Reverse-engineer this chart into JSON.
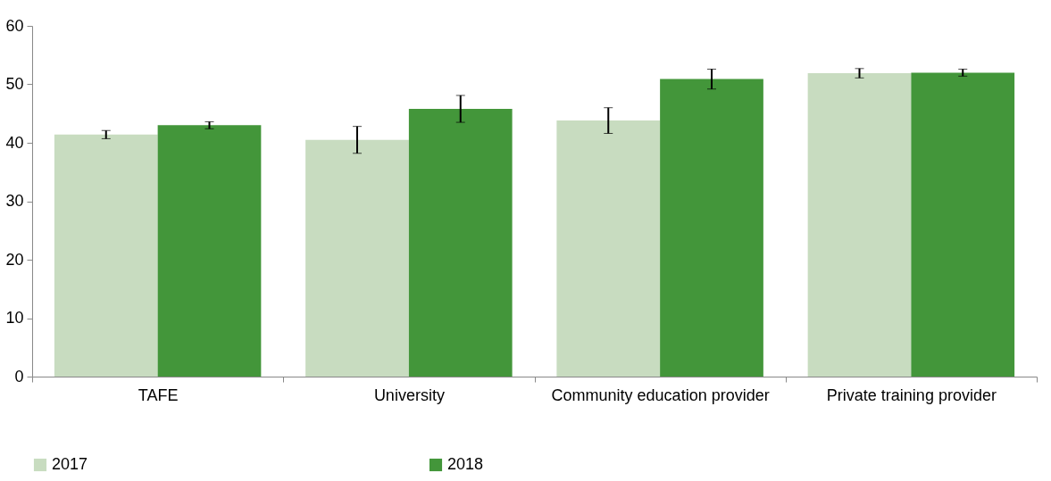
{
  "chart_data": {
    "type": "bar",
    "categories": [
      "TAFE",
      "University",
      "Community education provider",
      "Private training provider"
    ],
    "series": [
      {
        "name": "2017",
        "color": "#c8dcc0",
        "values": [
          41.4,
          40.5,
          43.8,
          51.9
        ],
        "errors": [
          0.7,
          2.3,
          2.2,
          0.8
        ]
      },
      {
        "name": "2018",
        "color": "#43963a",
        "values": [
          43.0,
          45.8,
          50.9,
          52.0
        ],
        "errors": [
          0.6,
          2.3,
          1.7,
          0.6
        ]
      }
    ],
    "ylim": [
      0,
      60
    ],
    "yticks": [
      0,
      10,
      20,
      30,
      40,
      50,
      60
    ],
    "grid": false,
    "legend": "bottom"
  }
}
